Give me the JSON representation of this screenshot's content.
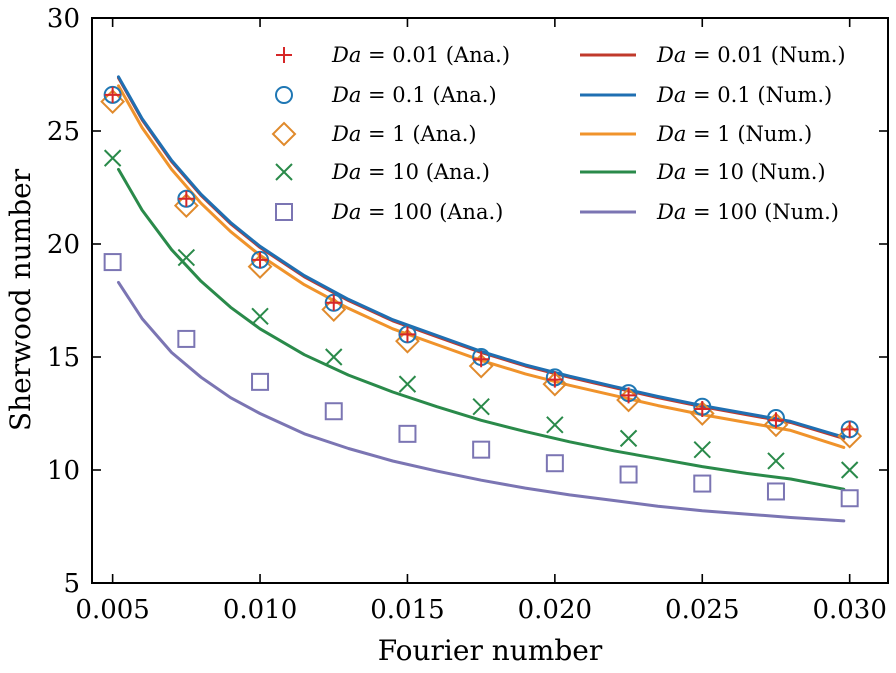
{
  "chart_data": {
    "type": "line",
    "xlabel": "Fourier number",
    "ylabel": "Sherwood number",
    "xlim": [
      0.0043,
      0.0313
    ],
    "ylim": [
      5,
      30
    ],
    "x_ticks": [
      0.005,
      0.01,
      0.015,
      0.02,
      0.025,
      0.03
    ],
    "x_tick_labels": [
      "0.005",
      "0.010",
      "0.015",
      "0.020",
      "0.025",
      "0.030"
    ],
    "y_ticks": [
      5,
      10,
      15,
      20,
      25,
      30
    ],
    "y_tick_labels": [
      "5",
      "10",
      "15",
      "20",
      "25",
      "30"
    ],
    "legend_placement": "top-right",
    "grid": false,
    "analytical_x": [
      0.005,
      0.0075,
      0.01,
      0.0125,
      0.015,
      0.0175,
      0.02,
      0.0225,
      0.025,
      0.0275,
      0.03
    ],
    "numerical_x": [
      0.0052,
      0.006,
      0.007,
      0.008,
      0.009,
      0.01,
      0.0115,
      0.013,
      0.0145,
      0.016,
      0.0175,
      0.019,
      0.0205,
      0.022,
      0.0235,
      0.025,
      0.0265,
      0.028,
      0.0298
    ],
    "series": [
      {
        "name": "Da = 0.01 (Ana.)",
        "legend_var": "Da",
        "legend_rest": " = 0.01 (Ana.)",
        "kind": "marker",
        "marker": "plus",
        "color": "#d62728",
        "values": [
          26.6,
          22.0,
          19.3,
          17.4,
          16.0,
          14.9,
          14.0,
          13.3,
          12.7,
          12.2,
          11.8
        ]
      },
      {
        "name": "Da = 0.1 (Ana.)",
        "legend_var": "Da",
        "legend_rest": " = 0.1 (Ana.)",
        "kind": "marker",
        "marker": "circle",
        "color": "#1f77b4",
        "values": [
          26.6,
          22.0,
          19.3,
          17.4,
          16.0,
          15.0,
          14.1,
          13.4,
          12.8,
          12.3,
          11.8
        ]
      },
      {
        "name": "Da = 1 (Ana.)",
        "legend_var": "Da",
        "legend_rest": " = 1 (Ana.)",
        "kind": "marker",
        "marker": "diamond",
        "color": "#e08a2c",
        "values": [
          26.3,
          21.7,
          19.0,
          17.1,
          15.7,
          14.6,
          13.8,
          13.1,
          12.5,
          12.0,
          11.5
        ]
      },
      {
        "name": "Da = 10 (Ana.)",
        "legend_var": "Da",
        "legend_rest": " = 10 (Ana.)",
        "kind": "marker",
        "marker": "cross",
        "color": "#2a8a4a",
        "values": [
          23.8,
          19.4,
          16.8,
          15.0,
          13.8,
          12.8,
          12.0,
          11.4,
          10.9,
          10.4,
          10.0
        ]
      },
      {
        "name": "Da = 100 (Ana.)",
        "legend_var": "Da",
        "legend_rest": " = 100 (Ana.)",
        "kind": "marker",
        "marker": "square",
        "color": "#7b75b3",
        "values": [
          19.2,
          15.8,
          13.9,
          12.6,
          11.6,
          10.9,
          10.3,
          9.8,
          9.4,
          9.05,
          8.75
        ]
      },
      {
        "name": "Da = 0.01 (Num.)",
        "legend_var": "Da",
        "legend_rest": " = 0.01 (Num.)",
        "kind": "line",
        "color": "#c0392b",
        "values": [
          27.35,
          25.5,
          23.65,
          22.15,
          20.9,
          19.85,
          18.55,
          17.5,
          16.6,
          15.9,
          15.2,
          14.6,
          14.1,
          13.65,
          13.2,
          12.8,
          12.45,
          12.1,
          11.4
        ]
      },
      {
        "name": "Da = 0.1 (Num.)",
        "legend_var": "Da",
        "legend_rest": " = 0.1 (Num.)",
        "kind": "line",
        "color": "#1f6fb2",
        "values": [
          27.4,
          25.55,
          23.7,
          22.2,
          20.95,
          19.9,
          18.6,
          17.55,
          16.65,
          15.95,
          15.25,
          14.65,
          14.15,
          13.7,
          13.25,
          12.85,
          12.5,
          12.15,
          11.45
        ]
      },
      {
        "name": "Da = 1 (Num.)",
        "legend_var": "Da",
        "legend_rest": " = 1 (Num.)",
        "kind": "line",
        "color": "#f0932b",
        "values": [
          27.0,
          25.15,
          23.3,
          21.8,
          20.55,
          19.5,
          18.2,
          17.15,
          16.25,
          15.55,
          14.85,
          14.25,
          13.75,
          13.3,
          12.85,
          12.45,
          12.1,
          11.75,
          11.0
        ]
      },
      {
        "name": "Da = 10 (Num.)",
        "legend_var": "Da",
        "legend_rest": " = 10 (Num.)",
        "kind": "line",
        "color": "#2a8a4a",
        "values": [
          23.3,
          21.5,
          19.75,
          18.35,
          17.2,
          16.25,
          15.1,
          14.2,
          13.45,
          12.8,
          12.2,
          11.7,
          11.25,
          10.85,
          10.5,
          10.15,
          9.85,
          9.6,
          9.15
        ]
      },
      {
        "name": "Da = 100 (Num.)",
        "legend_var": "Da",
        "legend_rest": " = 100 (Num.)",
        "kind": "line",
        "color": "#7b75b3",
        "values": [
          18.3,
          16.7,
          15.2,
          14.1,
          13.2,
          12.5,
          11.6,
          10.95,
          10.4,
          9.95,
          9.55,
          9.2,
          8.9,
          8.65,
          8.4,
          8.2,
          8.05,
          7.9,
          7.75
        ]
      }
    ]
  }
}
